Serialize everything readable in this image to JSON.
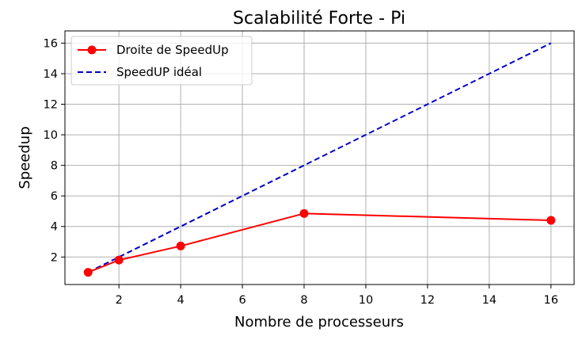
{
  "chart_data": {
    "type": "line",
    "title": "Scalabilité Forte - Pi",
    "xlabel": "Nombre de processeurs",
    "ylabel": "Speedup",
    "xlim": [
      0.25,
      16.75
    ],
    "ylim": [
      0.2,
      16.8
    ],
    "xticks": [
      2,
      4,
      6,
      8,
      10,
      12,
      14,
      16
    ],
    "yticks": [
      2,
      4,
      6,
      8,
      10,
      12,
      14,
      16
    ],
    "grid": true,
    "legend_position": "top-left",
    "series": [
      {
        "name": "Droite de SpeedUp",
        "color": "#ff0000",
        "style": "solid",
        "marker": "circle",
        "x": [
          1,
          2,
          4,
          8,
          16
        ],
        "y": [
          1.0,
          1.8,
          2.72,
          4.85,
          4.4
        ]
      },
      {
        "name": "SpeedUP idéal",
        "color": "#0000cc",
        "style": "dashed",
        "marker": "none",
        "x": [
          1,
          16
        ],
        "y": [
          1,
          16
        ]
      }
    ]
  }
}
